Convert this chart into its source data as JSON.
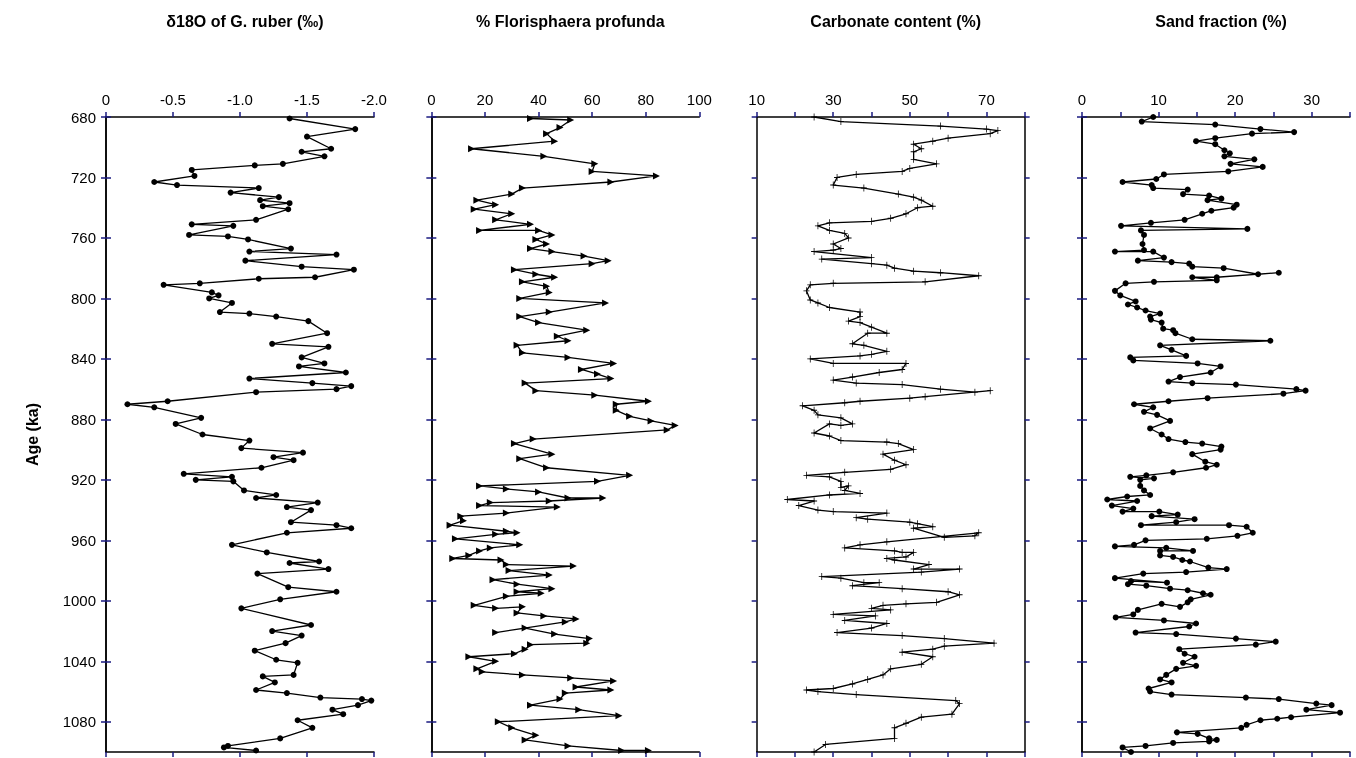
{
  "chart_data": [
    {
      "type": "line",
      "title": "δ18O of G. ruber (‰)",
      "ylabel": "Age (ka)",
      "color": "#000000",
      "marker": "circle",
      "xlim": [
        0,
        -2
      ],
      "xticks": [
        0,
        -0.5,
        {
          "value": -1,
          "label": "-1.0"
        },
        -1.5,
        {
          "value": -2,
          "label": "-2.0"
        }
      ],
      "ylim": [
        1100,
        680
      ],
      "yticks": [
        680,
        720,
        760,
        800,
        840,
        880,
        920,
        960,
        1000,
        1040,
        1080
      ],
      "x": [
        -1.37,
        -1.86,
        -1.5,
        -1.68,
        -1.46,
        -1.63,
        -1.32,
        -1.11,
        -0.64,
        -0.66,
        -0.36,
        -0.53,
        -1.14,
        -0.93,
        -1.29,
        -1.15,
        -1.37,
        -1.17,
        -1.36,
        -1.12,
        -0.64,
        -0.95,
        -0.62,
        -0.91,
        -1.06,
        -1.38,
        -1.07,
        -1.72,
        -1.04,
        -1.46,
        -1.85,
        -1.56,
        -1.14,
        -0.7,
        -0.43,
        -0.79,
        -0.84,
        -0.77,
        -0.94,
        -0.85,
        -1.07,
        -1.27,
        -1.51,
        -1.65,
        -1.24,
        -1.66,
        -1.46,
        -1.63,
        -1.44,
        -1.79,
        -1.07,
        -1.54,
        -1.83,
        -1.72,
        -1.12,
        -0.46,
        -0.16,
        -0.36,
        -0.71,
        -0.52,
        -0.72,
        -1.07,
        -1.01,
        -1.47,
        -1.25,
        -1.4,
        -1.16,
        -0.58,
        -0.94,
        -0.67,
        -0.95,
        -1.03,
        -1.27,
        -1.12,
        -1.58,
        -1.35,
        -1.53,
        -1.38,
        -1.72,
        -1.83,
        -1.35,
        -0.94,
        -1.2,
        -1.59,
        -1.37,
        -1.66,
        -1.13,
        -1.36,
        -1.72,
        -1.3,
        -1.01,
        -1.53,
        -1.24,
        -1.46,
        -1.34,
        -1.11,
        -1.27,
        -1.43,
        -1.4,
        -1.17,
        -1.26,
        -1.12,
        -1.35,
        -1.6,
        -1.91,
        -1.98,
        -1.88,
        -1.69,
        -1.77,
        -1.43,
        -1.54,
        -1.3,
        -0.91,
        -0.88,
        -1.12
      ],
      "values": [
        681,
        688,
        693,
        701,
        703,
        706,
        711,
        712,
        715,
        719,
        723,
        725,
        727,
        730,
        733,
        735,
        737,
        739,
        741,
        748,
        751,
        752,
        758,
        759,
        761,
        767,
        769,
        771,
        775,
        779,
        781,
        786,
        787,
        790,
        791,
        796,
        798,
        800,
        803,
        809,
        810,
        812,
        815,
        823,
        830,
        832,
        839,
        843,
        845,
        849,
        853,
        856,
        858,
        860,
        862,
        868,
        870,
        872,
        879,
        883,
        890,
        894,
        899,
        902,
        905,
        907,
        912,
        916,
        918,
        920,
        921,
        927,
        930,
        932,
        935,
        938,
        940,
        948,
        950,
        952,
        955,
        963,
        968,
        974,
        975,
        979,
        982,
        991,
        994,
        999,
        1005,
        1016,
        1020,
        1023,
        1028,
        1033,
        1039,
        1041,
        1049,
        1050,
        1054,
        1059,
        1061,
        1064,
        1065,
        1066,
        1069,
        1072,
        1075,
        1079,
        1084,
        1091,
        1096,
        1097,
        1099
      ]
    },
    {
      "type": "line",
      "title": "% Florisphaera profunda",
      "color": "#000000",
      "marker": "triangle",
      "tick_labels": "x",
      "xlim": [
        0,
        100
      ],
      "xticks": [
        0,
        20,
        40,
        60,
        80,
        100
      ],
      "ylim": [
        1100,
        680
      ],
      "yticks": [
        680,
        720,
        760,
        800,
        840,
        880,
        920,
        960,
        1000,
        1040,
        1080
      ],
      "x": [
        37,
        52,
        48,
        43,
        46,
        15,
        42,
        61,
        60,
        84,
        67,
        34,
        30,
        17,
        24,
        16,
        30,
        24,
        37,
        18,
        40,
        45,
        39,
        43,
        37,
        45,
        57,
        66,
        60,
        31,
        39,
        46,
        34,
        43,
        44,
        33,
        65,
        44,
        33,
        40,
        58,
        47,
        51,
        32,
        34,
        51,
        68,
        56,
        62,
        67,
        35,
        39,
        61,
        81,
        69,
        69,
        74,
        82,
        91,
        88,
        38,
        31,
        45,
        33,
        43,
        74,
        62,
        18,
        28,
        40,
        51,
        64,
        44,
        22,
        18,
        47,
        28,
        11,
        12,
        7,
        28,
        32,
        24,
        9,
        33,
        22,
        18,
        14,
        8,
        26,
        28,
        53,
        29,
        44,
        23,
        32,
        45,
        32,
        41,
        28,
        16,
        24,
        34,
        32,
        42,
        54,
        50,
        24,
        35,
        46,
        59,
        58,
        37,
        35,
        31,
        14,
        24,
        17,
        19,
        34,
        52,
        68,
        54,
        67,
        50,
        48,
        37,
        55,
        70,
        25,
        30,
        39,
        35,
        51,
        71,
        81
      ],
      "values": [
        681,
        682,
        687,
        691,
        696,
        701,
        706,
        711,
        716,
        719,
        723,
        727,
        731,
        735,
        738,
        741,
        744,
        748,
        751,
        755,
        755,
        758,
        761,
        764,
        767,
        769,
        772,
        775,
        777,
        781,
        784,
        786,
        789,
        792,
        796,
        800,
        803,
        809,
        812,
        816,
        821,
        825,
        828,
        831,
        836,
        839,
        843,
        847,
        850,
        853,
        856,
        861,
        864,
        868,
        870,
        874,
        878,
        881,
        884,
        887,
        893,
        896,
        903,
        906,
        912,
        917,
        921,
        924,
        926,
        928,
        932,
        932,
        934,
        935,
        937,
        938,
        942,
        944,
        947,
        950,
        954,
        955,
        956,
        959,
        963,
        965,
        967,
        970,
        972,
        973,
        976,
        977,
        980,
        983,
        986,
        989,
        992,
        994,
        995,
        997,
        1003,
        1005,
        1004,
        1008,
        1010,
        1012,
        1014,
        1021,
        1018,
        1022,
        1025,
        1028,
        1029,
        1032,
        1035,
        1037,
        1040,
        1045,
        1047,
        1049,
        1051,
        1053,
        1057,
        1059,
        1061,
        1065,
        1069,
        1072,
        1076,
        1080,
        1084,
        1089,
        1092,
        1096,
        1099,
        1099
      ]
    },
    {
      "type": "line",
      "title": "Carbonate content (%)",
      "color": "#000000",
      "marker": "cross",
      "tick_labels": "x",
      "xlim": [
        10,
        80
      ],
      "xticks": [
        10,
        {
          "value": 20,
          "label": null
        },
        30,
        {
          "value": 40,
          "label": null
        },
        50,
        {
          "value": 60,
          "label": null
        },
        70,
        {
          "value": 80,
          "label": null
        }
      ],
      "ylim": [
        1100,
        680
      ],
      "yticks": [
        680,
        720,
        760,
        800,
        840,
        880,
        920,
        960,
        1000,
        1040,
        1080
      ],
      "x": [
        25,
        32,
        58,
        70,
        73,
        71,
        60,
        56,
        51,
        53,
        51,
        51,
        57,
        50,
        48,
        36,
        31,
        30,
        38,
        47,
        51,
        53,
        56,
        52,
        49,
        45,
        40,
        29,
        26,
        29,
        33,
        34,
        30,
        32,
        30,
        25,
        40,
        27,
        40,
        44,
        46,
        51,
        58,
        68,
        54,
        30,
        24,
        23,
        24,
        26,
        29,
        37,
        37,
        34,
        37,
        40,
        44,
        39,
        35,
        38,
        44,
        40,
        37,
        24,
        30,
        49,
        48,
        42,
        35,
        30,
        36,
        48,
        58,
        67,
        71,
        54,
        50,
        37,
        33,
        22,
        25,
        26,
        32,
        35,
        32,
        29,
        25,
        29,
        32,
        44,
        47,
        51,
        43,
        46,
        49,
        45,
        33,
        23,
        29,
        32,
        32,
        34,
        33,
        37,
        29,
        18,
        25,
        21,
        26,
        30,
        44,
        36,
        39,
        50,
        52,
        56,
        51,
        59,
        67,
        68,
        44,
        37,
        33,
        46,
        48,
        51,
        49,
        44,
        46,
        55,
        51,
        63,
        53,
        27,
        32,
        38,
        42,
        35,
        48,
        60,
        63,
        57,
        49,
        43,
        40,
        45,
        30,
        41,
        33,
        44,
        40,
        31,
        48,
        59,
        72,
        59,
        56,
        48,
        56,
        53,
        45,
        43,
        39,
        35,
        30,
        23,
        26,
        36,
        62,
        63,
        61,
        53,
        49,
        46,
        46,
        28,
        25
      ],
      "values": [
        680,
        683,
        686,
        688,
        689,
        691,
        694,
        696,
        698,
        701,
        703,
        708,
        711,
        714,
        716,
        718,
        720,
        725,
        727,
        731,
        733,
        735,
        739,
        740,
        744,
        747,
        749,
        750,
        752,
        755,
        757,
        760,
        764,
        767,
        768,
        769,
        773,
        774,
        777,
        778,
        780,
        782,
        783,
        785,
        789,
        790,
        791,
        795,
        801,
        803,
        806,
        809,
        812,
        815,
        816,
        819,
        823,
        823,
        830,
        831,
        835,
        837,
        838,
        840,
        843,
        843,
        847,
        849,
        852,
        854,
        856,
        857,
        860,
        862,
        861,
        865,
        866,
        868,
        869,
        871,
        874,
        877,
        879,
        883,
        884,
        883,
        889,
        891,
        894,
        895,
        896,
        900,
        903,
        907,
        910,
        913,
        915,
        917,
        918,
        921,
        925,
        924,
        927,
        929,
        930,
        933,
        934,
        937,
        940,
        941,
        942,
        945,
        946,
        948,
        949,
        951,
        952,
        958,
        957,
        955,
        961,
        963,
        965,
        967,
        968,
        968,
        971,
        972,
        973,
        976,
        979,
        979,
        981,
        984,
        985,
        988,
        988,
        990,
        992,
        994,
        996,
        1001,
        1002,
        1003,
        1005,
        1006,
        1009,
        1010,
        1013,
        1015,
        1018,
        1021,
        1023,
        1025,
        1028,
        1030,
        1032,
        1034,
        1037,
        1042,
        1045,
        1049,
        1052,
        1055,
        1058,
        1059,
        1060,
        1062,
        1066,
        1068,
        1075,
        1077,
        1081,
        1084,
        1091,
        1095,
        1100
      ]
    },
    {
      "type": "line",
      "title": "Sand fraction (%)",
      "color": "#000000",
      "marker": "circle",
      "tick_labels": "x",
      "xlim": [
        0,
        35
      ],
      "xticks": [
        0,
        {
          "value": 5,
          "label": null
        },
        10,
        {
          "value": 15,
          "label": null
        },
        20,
        {
          "value": 25,
          "label": null
        },
        30,
        {
          "value": 35,
          "label": null
        }
      ],
      "ylim": [
        1100,
        680
      ],
      "yticks": [
        680,
        720,
        760,
        800,
        840,
        880,
        920,
        960,
        1000,
        1040,
        1080
      ],
      "x": [
        9.3,
        7.8,
        17.4,
        23.3,
        27.7,
        22.2,
        17.4,
        14.9,
        17.4,
        18.6,
        19.3,
        18.6,
        22.5,
        19.4,
        23.6,
        19.1,
        10.7,
        9.7,
        5.3,
        9.1,
        9.3,
        13.8,
        13.2,
        16.6,
        18.2,
        16.4,
        20.2,
        19.8,
        16.9,
        15.7,
        13.4,
        9.0,
        5.1,
        21.6,
        7.7,
        8.1,
        7.9,
        8.1,
        4.3,
        9.3,
        10.7,
        7.3,
        11.7,
        14.0,
        14.4,
        18.5,
        23.0,
        25.7,
        17.6,
        14.4,
        17.6,
        9.4,
        5.7,
        4.3,
        5.0,
        7.0,
        6.0,
        7.2,
        8.3,
        10.2,
        8.9,
        9.0,
        10.4,
        10.6,
        11.9,
        12.2,
        14.4,
        24.6,
        10.2,
        11.7,
        13.6,
        6.3,
        6.7,
        15.1,
        18.1,
        16.8,
        12.8,
        11.3,
        14.4,
        20.1,
        28.0,
        29.2,
        26.3,
        16.4,
        11.3,
        6.8,
        9.3,
        8.1,
        9.8,
        11.5,
        8.9,
        10.4,
        11.3,
        13.5,
        15.7,
        18.2,
        18.1,
        14.4,
        16.1,
        17.6,
        16.2,
        11.9,
        8.4,
        6.3,
        9.4,
        7.6,
        7.6,
        8.1,
        8.9,
        5.9,
        3.3,
        7.2,
        3.9,
        6.7,
        5.3,
        10.1,
        12.5,
        9.1,
        14.7,
        12.3,
        7.7,
        19.2,
        21.5,
        22.3,
        20.3,
        16.3,
        8.3,
        6.8,
        4.3,
        11.0,
        14.5,
        10.2,
        10.2,
        11.9,
        13.1,
        14.1,
        16.5,
        18.9,
        13.6,
        8.0,
        4.3,
        11.1,
        6.4,
        6.0,
        8.4,
        11.5,
        13.8,
        15.8,
        16.8,
        14.2,
        13.8,
        12.8,
        10.4,
        7.3,
        6.7,
        4.4,
        10.7,
        14.9,
        14.0,
        7.0,
        12.3,
        20.1,
        25.3,
        22.7,
        12.7,
        13.4,
        14.7,
        13.2,
        14.9,
        12.3,
        11.0,
        10.2,
        11.7,
        8.7,
        8.9,
        11.7,
        21.4,
        25.7,
        30.6,
        32.6,
        29.3,
        33.7,
        27.3,
        25.5,
        23.3,
        21.5,
        20.8,
        12.4,
        15.1,
        16.6,
        17.6,
        16.6,
        11.9,
        8.3,
        5.3,
        6.4
      ],
      "values": [
        680,
        683,
        685,
        688,
        690,
        691,
        694,
        696,
        698,
        702,
        704,
        706,
        708,
        711,
        713,
        716,
        718,
        721,
        723,
        725,
        727,
        728,
        731,
        732,
        734,
        735,
        738,
        740,
        742,
        744,
        748,
        750,
        752,
        754,
        755,
        758,
        764,
        768,
        769,
        769,
        773,
        775,
        776,
        777,
        779,
        780,
        784,
        783,
        786,
        786,
        788,
        789,
        790,
        795,
        798,
        802,
        804,
        806,
        808,
        810,
        812,
        814,
        816,
        820,
        821,
        823,
        827,
        828,
        831,
        834,
        838,
        839,
        841,
        843,
        845,
        849,
        852,
        855,
        856,
        857,
        860,
        861,
        863,
        866,
        868,
        870,
        872,
        875,
        877,
        881,
        886,
        890,
        893,
        895,
        896,
        898,
        900,
        903,
        908,
        910,
        912,
        915,
        917,
        918,
        919,
        920,
        924,
        927,
        930,
        931,
        933,
        934,
        937,
        939,
        941,
        941,
        943,
        944,
        946,
        948,
        950,
        950,
        951,
        955,
        957,
        959,
        960,
        963,
        964,
        965,
        967,
        967,
        970,
        971,
        973,
        974,
        978,
        979,
        981,
        982,
        985,
        988,
        987,
        989,
        990,
        992,
        993,
        995,
        996,
        999,
        1001,
        1004,
        1002,
        1006,
        1009,
        1011,
        1013,
        1015,
        1017,
        1021,
        1022,
        1025,
        1027,
        1029,
        1032,
        1035,
        1037,
        1041,
        1043,
        1045,
        1049,
        1052,
        1054,
        1058,
        1060,
        1062,
        1064,
        1065,
        1068,
        1069,
        1072,
        1074,
        1077,
        1078,
        1079,
        1082,
        1084,
        1087,
        1088,
        1091,
        1092,
        1093,
        1094,
        1096,
        1097,
        1100
      ]
    }
  ]
}
